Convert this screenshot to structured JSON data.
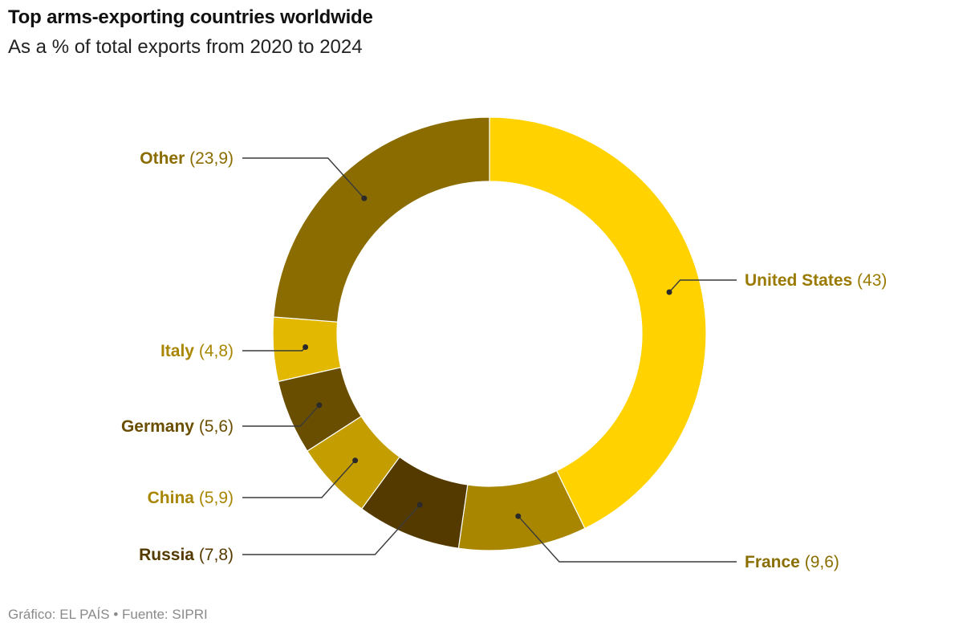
{
  "header": {
    "title": "Top arms-exporting countries worldwide",
    "subtitle": "As a % of total exports from 2020 to 2024"
  },
  "footer": {
    "credit": "Gráfico: EL PAÍS • Fuente: SIPRI"
  },
  "chart_data": {
    "type": "pie",
    "donut": true,
    "title": "Top arms-exporting countries worldwide",
    "subtitle": "As a % of total exports from 2020 to 2024",
    "slices": [
      {
        "label": "United States",
        "value": 43,
        "value_label": "(43)",
        "color": "#FFD200",
        "label_color": "#9A7A00"
      },
      {
        "label": "France",
        "value": 9.6,
        "value_label": "(9,6)",
        "color": "#A88600",
        "label_color": "#8A6E00"
      },
      {
        "label": "Russia",
        "value": 7.8,
        "value_label": "(7,8)",
        "color": "#553A00",
        "label_color": "#553A00"
      },
      {
        "label": "China",
        "value": 5.9,
        "value_label": "(5,9)",
        "color": "#C49E00",
        "label_color": "#A88600"
      },
      {
        "label": "Germany",
        "value": 5.6,
        "value_label": "(5,6)",
        "color": "#6A4E00",
        "label_color": "#6A4E00"
      },
      {
        "label": "Italy",
        "value": 4.8,
        "value_label": "(4,8)",
        "color": "#E2B800",
        "label_color": "#A88600"
      },
      {
        "label": "Other",
        "value": 23.9,
        "value_label": "(23,9)",
        "color": "#8A6C00",
        "label_color": "#8A6C00"
      }
    ]
  }
}
